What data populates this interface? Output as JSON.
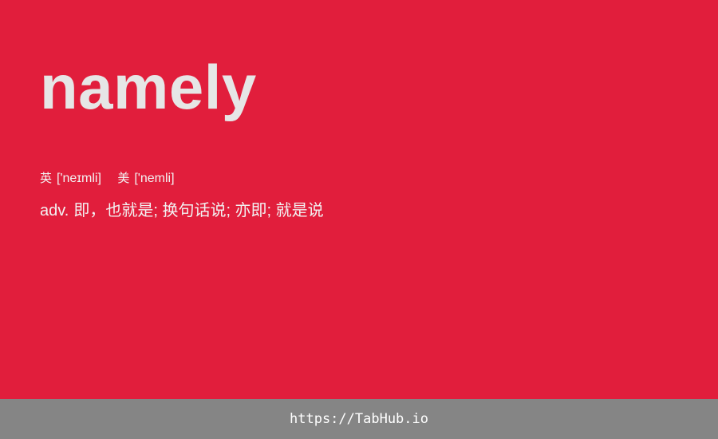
{
  "word": "namely",
  "phonetics": {
    "uk": {
      "label": "英",
      "ipa": "['neɪmli]"
    },
    "us": {
      "label": "美",
      "ipa": "['nemli]"
    }
  },
  "definition": {
    "pos": "adv.",
    "text": "即，也就是; 换句话说; 亦即; 就是说"
  },
  "footer": {
    "link": "https://TabHub.io"
  },
  "colors": {
    "background": "#e11e3c",
    "footer": "#858585",
    "word": "#e6e6e6"
  }
}
